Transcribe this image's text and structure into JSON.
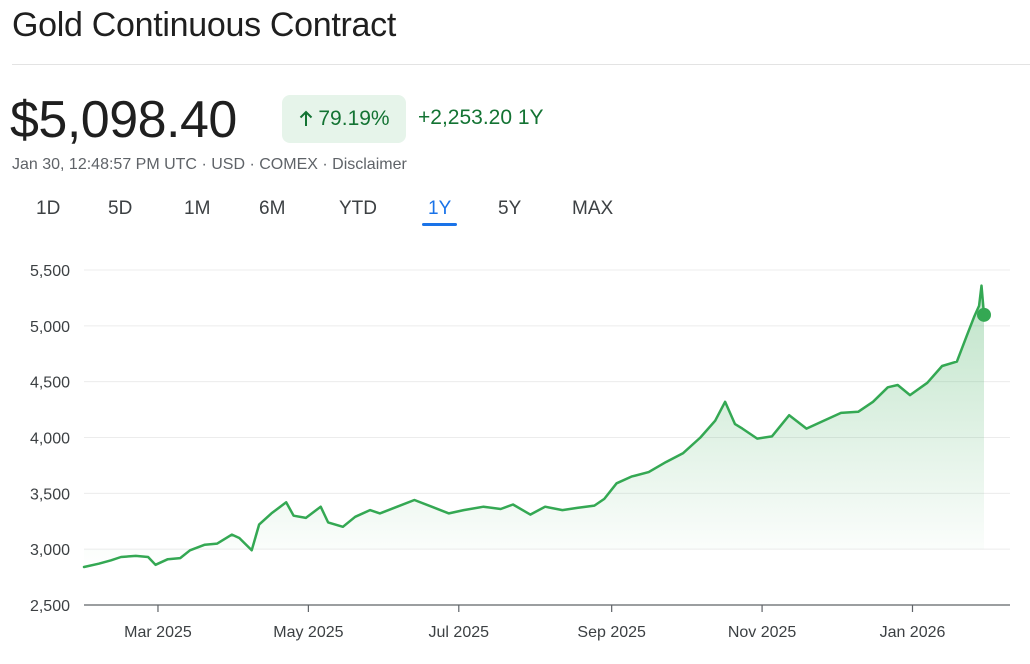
{
  "header": {
    "title": "Gold Continuous Contract"
  },
  "quote": {
    "price": "$5,098.40",
    "change_percent": "79.19%",
    "change_abs": "+2,253.20 1Y",
    "change_direction": "up",
    "timestamp": "Jan 30, 12:48:57 PM UTC",
    "currency": "USD",
    "exchange": "COMEX",
    "disclaimer": "Disclaimer",
    "separator": "·"
  },
  "tabs": [
    {
      "label": "1D",
      "active": false
    },
    {
      "label": "5D",
      "active": false
    },
    {
      "label": "1M",
      "active": false
    },
    {
      "label": "6M",
      "active": false
    },
    {
      "label": "YTD",
      "active": false
    },
    {
      "label": "1Y",
      "active": true
    },
    {
      "label": "5Y",
      "active": false
    },
    {
      "label": "MAX",
      "active": false
    }
  ],
  "colors": {
    "positive": "#137333",
    "positive_bg": "#e6f4ea",
    "line": "#34a853",
    "active_tab": "#1a73e8",
    "text": "#1f1f1f",
    "muted": "#5f6368"
  },
  "chart_data": {
    "type": "area",
    "ylim": [
      2500,
      5500
    ],
    "yticks": [
      2500,
      3000,
      3500,
      4000,
      4500,
      5000,
      5500
    ],
    "ytick_labels": [
      "2,500",
      "3,000",
      "3,500",
      "4,000",
      "4,500",
      "5,000",
      "5,500"
    ],
    "xticks": [
      "2025-03-01",
      "2025-05-01",
      "2025-07-01",
      "2025-09-01",
      "2025-11-01",
      "2026-01-01"
    ],
    "xtick_labels": [
      "Mar 2025",
      "May 2025",
      "Jul 2025",
      "Sep 2025",
      "Nov 2025",
      "Jan 2026"
    ],
    "xlim": [
      "2025-01-30",
      "2026-01-30"
    ],
    "series": [
      {
        "x": [
          "2025-01-30",
          "2025-02-05",
          "2025-02-10",
          "2025-02-14",
          "2025-02-20",
          "2025-02-25",
          "2025-02-28",
          "2025-03-05",
          "2025-03-10",
          "2025-03-14",
          "2025-03-20",
          "2025-03-25",
          "2025-03-31",
          "2025-04-03",
          "2025-04-08",
          "2025-04-11",
          "2025-04-16",
          "2025-04-22",
          "2025-04-25",
          "2025-04-30",
          "2025-05-06",
          "2025-05-09",
          "2025-05-15",
          "2025-05-20",
          "2025-05-26",
          "2025-05-30",
          "2025-06-06",
          "2025-06-13",
          "2025-06-20",
          "2025-06-27",
          "2025-07-03",
          "2025-07-11",
          "2025-07-18",
          "2025-07-23",
          "2025-07-30",
          "2025-08-05",
          "2025-08-12",
          "2025-08-18",
          "2025-08-25",
          "2025-08-29",
          "2025-09-03",
          "2025-09-09",
          "2025-09-16",
          "2025-09-23",
          "2025-09-30",
          "2025-10-07",
          "2025-10-13",
          "2025-10-17",
          "2025-10-21",
          "2025-10-24",
          "2025-10-30",
          "2025-11-05",
          "2025-11-12",
          "2025-11-19",
          "2025-11-26",
          "2025-12-03",
          "2025-12-10",
          "2025-12-16",
          "2025-12-22",
          "2025-12-26",
          "2025-12-31",
          "2026-01-07",
          "2026-01-13",
          "2026-01-19",
          "2026-01-23",
          "2026-01-26",
          "2026-01-28",
          "2026-01-29",
          "2026-01-30"
        ],
        "y": [
          2840,
          2870,
          2900,
          2930,
          2940,
          2930,
          2860,
          2910,
          2920,
          2990,
          3040,
          3050,
          3130,
          3100,
          2990,
          3220,
          3320,
          3420,
          3300,
          3280,
          3380,
          3240,
          3200,
          3290,
          3350,
          3320,
          3380,
          3440,
          3380,
          3320,
          3350,
          3380,
          3360,
          3400,
          3310,
          3380,
          3350,
          3370,
          3390,
          3450,
          3590,
          3650,
          3690,
          3780,
          3860,
          4000,
          4150,
          4320,
          4120,
          4080,
          3990,
          4010,
          4200,
          4080,
          4150,
          4220,
          4230,
          4320,
          4450,
          4470,
          4380,
          4490,
          4640,
          4680,
          4910,
          5080,
          5180,
          5360,
          5098.4
        ]
      }
    ]
  }
}
